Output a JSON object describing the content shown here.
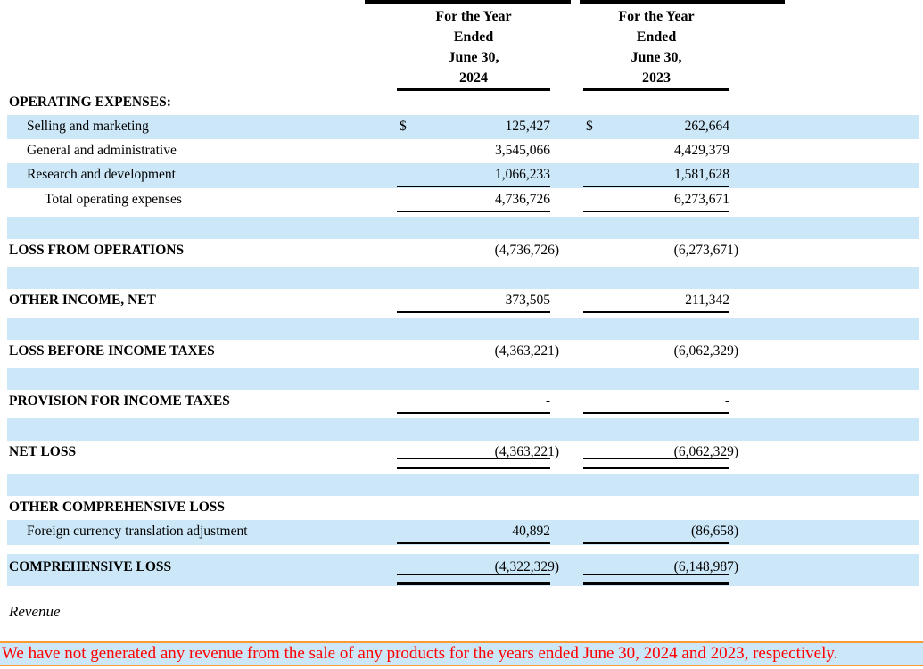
{
  "header": {
    "col1": {
      "lines": [
        "For the Year",
        "Ended",
        "June 30,",
        "2024"
      ]
    },
    "col2": {
      "lines": [
        "For the Year",
        "Ended",
        "June 30,",
        "2023"
      ]
    }
  },
  "rows": [
    {
      "label": "OPERATING EXPENSES:"
    },
    {
      "label": "Selling and marketing",
      "d1": "$",
      "v1": "125,427",
      "d2": "$",
      "v2": "262,664"
    },
    {
      "label": "General and administrative",
      "v1": "3,545,066",
      "v2": "4,429,379"
    },
    {
      "label": "Research and development",
      "v1": "1,066,233",
      "v2": "1,581,628"
    },
    {
      "label": "Total operating expenses",
      "v1": "4,736,726",
      "v2": "6,273,671"
    },
    {
      "label": "LOSS FROM OPERATIONS",
      "v1": "(4,736,726)",
      "v2": "(6,273,671)"
    },
    {
      "label": "OTHER INCOME, NET",
      "v1": "373,505",
      "v2": "211,342"
    },
    {
      "label": "LOSS BEFORE INCOME TAXES",
      "v1": "(4,363,221)",
      "v2": "(6,062,329)"
    },
    {
      "label": "PROVISION FOR INCOME TAXES",
      "v1": "-",
      "v2": "-"
    },
    {
      "label": "NET LOSS",
      "v1": "(4,363,221)",
      "v2": "(6,062,329)"
    },
    {
      "label": "OTHER COMPREHENSIVE LOSS"
    },
    {
      "label": "Foreign currency translation adjustment",
      "v1": "40,892",
      "v2": "(86,658)"
    },
    {
      "label": "COMPREHENSIVE LOSS",
      "v1": "(4,322,329)",
      "v2": "(6,148,987)"
    }
  ],
  "footer": {
    "revenue_heading": "Revenue",
    "note": "We have not generated any revenue from the sale of any products for the years ended June 30, 2024 and 2023, respectively."
  },
  "colors": {
    "row_shade": "#cce8f8",
    "rule": "#000000",
    "note_text": "#ff0000",
    "note_border": "#ff9933",
    "note_background": "#cce8f8"
  }
}
